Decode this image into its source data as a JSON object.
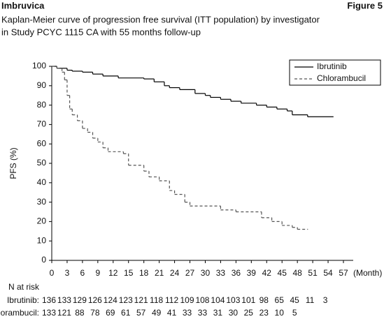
{
  "header": {
    "brand": "Imbruvica",
    "figure": "Figure 5"
  },
  "chart_data": {
    "type": "step",
    "title": "Kaplan-Meier curve of progression free survival (ITT population) by investigator",
    "subtitle": "in Study PCYC 1115 CA with 55 months follow-up",
    "y_label": "PFS (%)",
    "x_unit": "(Month)",
    "xlim": [
      0,
      57
    ],
    "xticks": [
      0,
      3,
      6,
      9,
      12,
      15,
      18,
      21,
      24,
      27,
      30,
      33,
      36,
      39,
      42,
      45,
      48,
      51,
      54,
      57
    ],
    "ylim": [
      0,
      100
    ],
    "yticks": [
      0,
      10,
      20,
      30,
      40,
      50,
      60,
      70,
      80,
      90,
      100
    ],
    "legend": "top-right",
    "series": [
      {
        "name": "Ibrutinib",
        "color": "#000000",
        "dash": false,
        "x": [
          0,
          1,
          3,
          4,
          6,
          8,
          10,
          13,
          18,
          20,
          22,
          23,
          25,
          28,
          30,
          31,
          33,
          35,
          37,
          40,
          42,
          44,
          46,
          47,
          50,
          55
        ],
        "values": [
          100,
          99,
          98,
          97.5,
          97,
          96,
          95,
          94,
          93.5,
          92,
          90,
          89,
          88,
          86,
          85,
          84,
          83,
          82,
          81,
          80,
          79,
          78,
          77,
          75,
          74,
          74
        ]
      },
      {
        "name": "Chlorambucil",
        "color": "#555555",
        "dash": true,
        "x": [
          0,
          1,
          2,
          2.5,
          3,
          3.5,
          4,
          5,
          6,
          7,
          8,
          9,
          10,
          11,
          14,
          15,
          18,
          19,
          21,
          23,
          24,
          26,
          27,
          33,
          36,
          41,
          43,
          45,
          47,
          48,
          50
        ],
        "values": [
          100,
          99,
          97,
          93,
          85,
          78,
          75,
          72,
          68,
          66,
          63,
          61,
          58,
          56,
          55,
          49,
          46,
          43,
          41,
          36,
          34,
          30,
          28,
          26,
          25,
          22,
          20,
          18,
          17,
          16,
          16
        ]
      }
    ]
  },
  "at_risk": {
    "title": "N at risk",
    "rows": [
      {
        "name": "Ibrutinib:",
        "values": [
          136,
          133,
          129,
          126,
          124,
          123,
          121,
          118,
          112,
          109,
          108,
          104,
          103,
          101,
          98,
          65,
          45,
          11,
          3
        ]
      },
      {
        "name": "Chlorambucil:",
        "values": [
          133,
          121,
          88,
          78,
          69,
          61,
          57,
          49,
          41,
          33,
          33,
          31,
          30,
          25,
          23,
          10,
          5
        ]
      }
    ]
  }
}
